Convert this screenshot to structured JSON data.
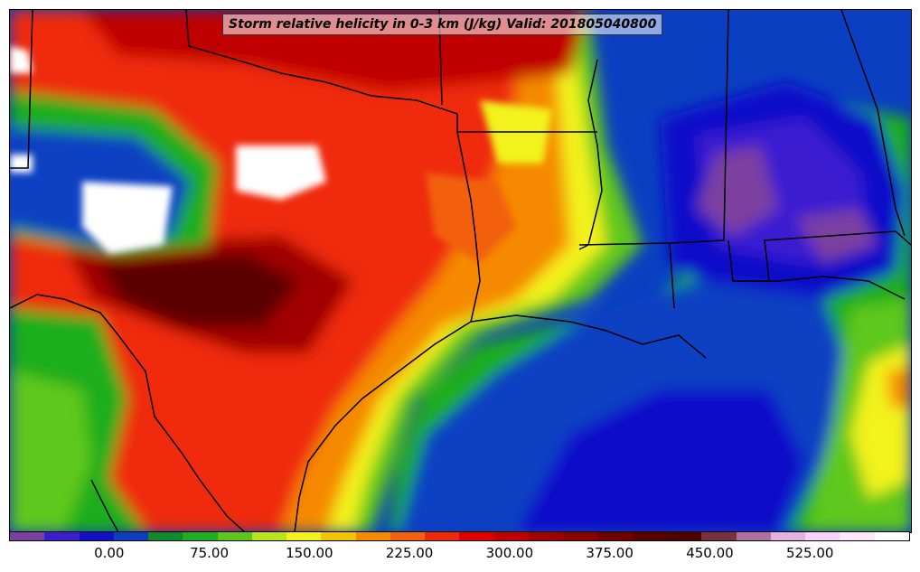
{
  "title": "Storm relative helicity in 0-3 km (J/kg) Valid: 201805040800",
  "colorbar": {
    "colors": [
      "#7b3fa0",
      "#3a1fd1",
      "#1111c9",
      "#0b3fc2",
      "#0f8a2c",
      "#1fae1f",
      "#5ec81a",
      "#b8e41a",
      "#f2f21a",
      "#f5c400",
      "#f58a00",
      "#f26010",
      "#ef2a0a",
      "#e00000",
      "#c00000",
      "#a00000",
      "#8a0000",
      "#700000",
      "#5a0000",
      "#500000",
      "#7a3040",
      "#b070a0",
      "#e4b0e4",
      "#f8d0f8",
      "#fbe8fb",
      "#ffffff"
    ],
    "tick_labels": [
      "0.00",
      "75.00",
      "150.00",
      "225.00",
      "300.00",
      "375.00",
      "450.00",
      "525.00"
    ],
    "tick_values": [
      0,
      75,
      150,
      225,
      300,
      375,
      450,
      525
    ],
    "range": [
      -75,
      600
    ]
  }
}
